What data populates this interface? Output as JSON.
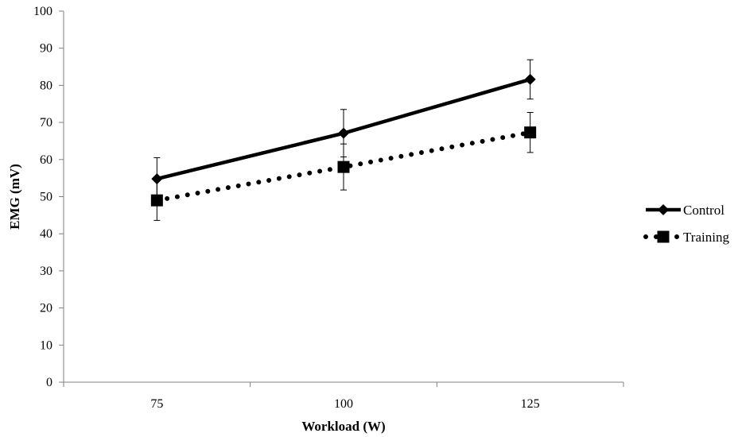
{
  "chart_data": {
    "type": "line",
    "title": "",
    "xlabel": "Workload (W)",
    "ylabel": "EMG (mV)",
    "categories": [
      "75",
      "100",
      "125"
    ],
    "ylim": [
      0,
      100
    ],
    "yticks": [
      0,
      10,
      20,
      30,
      40,
      50,
      60,
      70,
      80,
      90,
      100
    ],
    "grid": false,
    "legend_position": "right",
    "series": [
      {
        "name": "Control",
        "values": [
          54.8,
          67.1,
          81.6
        ],
        "error": [
          5.7,
          6.4,
          5.3
        ],
        "marker": "diamond",
        "line_style": "solid",
        "color": "#000000"
      },
      {
        "name": "Training",
        "values": [
          49.0,
          58.0,
          67.3
        ],
        "error": [
          5.4,
          6.2,
          5.4
        ],
        "marker": "square",
        "line_style": "dotted",
        "color": "#000000"
      }
    ]
  }
}
